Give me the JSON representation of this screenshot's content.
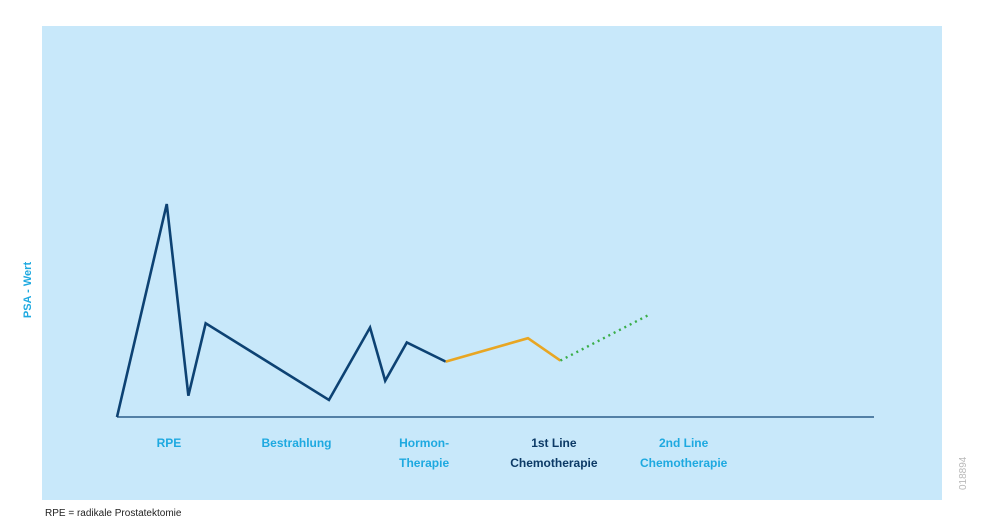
{
  "chart_data": {
    "type": "line",
    "ylabel": "PSA - Wert",
    "phases": [
      {
        "label": "RPE",
        "x": 1.2,
        "color": "#1ea9e0"
      },
      {
        "label": "Bestrahlung",
        "x": 4.15,
        "color": "#1ea9e0"
      },
      {
        "label": "Hormon-\nTherapie",
        "x": 7.1,
        "color": "#1ea9e0"
      },
      {
        "label": "1st Line\nChemotherapie",
        "x": 10.1,
        "color": "#0c3a66"
      },
      {
        "label": "2nd Line\nChemotherapie",
        "x": 13.1,
        "color": "#1ea9e0"
      }
    ],
    "series": [
      {
        "style": "solid",
        "color": "#0d4273",
        "points": [
          [
            0,
            0
          ],
          [
            1.15,
            10
          ],
          [
            1.65,
            1
          ],
          [
            2.05,
            4.4
          ],
          [
            4.9,
            0.8
          ],
          [
            5.85,
            4.2
          ],
          [
            6.2,
            1.7
          ],
          [
            6.7,
            3.5
          ],
          [
            7.6,
            2.6
          ]
        ]
      },
      {
        "style": "solid",
        "color": "#e8a623",
        "points": [
          [
            7.6,
            2.6
          ],
          [
            9.5,
            3.7
          ],
          [
            10.25,
            2.65
          ]
        ]
      },
      {
        "style": "dotted",
        "color": "#3aae49",
        "points": [
          [
            10.25,
            2.65
          ],
          [
            12.3,
            4.8
          ]
        ]
      }
    ],
    "xlim": [
      0,
      17.5
    ],
    "ylim": [
      0,
      10
    ]
  },
  "footnote": "RPE = radikale Prostatektomie",
  "image_code": "018894"
}
